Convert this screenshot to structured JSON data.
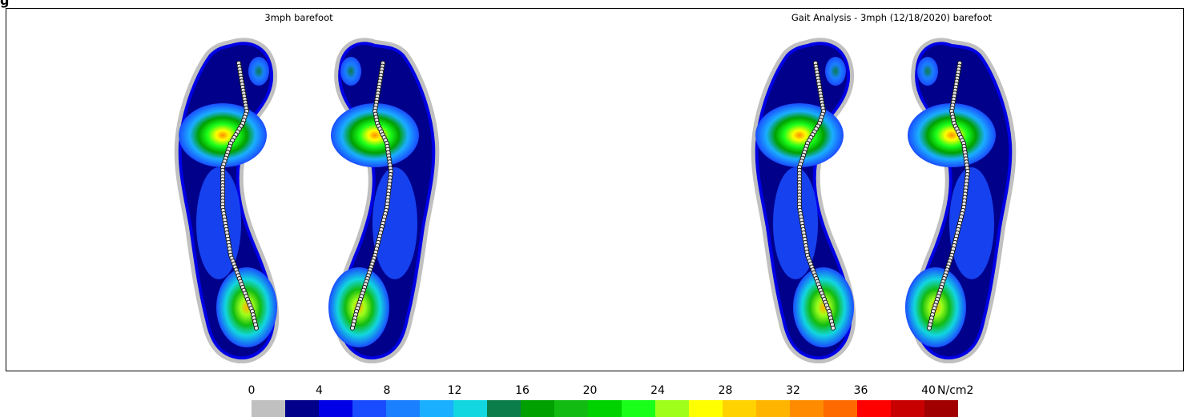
{
  "header": {
    "fragment": "g"
  },
  "panels": [
    {
      "title": "3mph barefoot"
    },
    {
      "title": "Gait Analysis - 3mph (12/18/2020) barefoot"
    }
  ],
  "legend": {
    "unit": "N/cm2",
    "ticks": [
      "0",
      "4",
      "8",
      "12",
      "16",
      "20",
      "24",
      "28",
      "32",
      "36",
      "40"
    ],
    "colors": [
      "#c0c0c0",
      "#00008b",
      "#0000e6",
      "#1a4cff",
      "#1a80ff",
      "#1aafff",
      "#12d6e0",
      "#0a7d4a",
      "#00a000",
      "#11bb11",
      "#00d200",
      "#1aff1a",
      "#a0ff1a",
      "#ffff00",
      "#ffd200",
      "#ffb400",
      "#ff8c00",
      "#ff6a00",
      "#ff0000",
      "#c80000",
      "#a00000"
    ]
  },
  "colors": {
    "halo": "#c0c0c0",
    "cop_fill": "#e6e6e6",
    "cop_stroke": "#202020"
  }
}
